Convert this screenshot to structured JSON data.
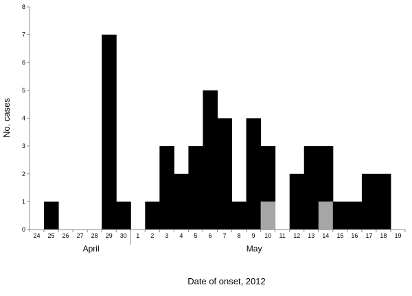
{
  "chart_data": {
    "type": "bar",
    "title": "",
    "xlabel": "Date of onset, 2012",
    "ylabel": "No. cases",
    "ylim": [
      0,
      8
    ],
    "yticks": [
      0,
      1,
      2,
      3,
      4,
      5,
      6,
      7,
      8
    ],
    "grid": false,
    "categories": [
      "24",
      "25",
      "26",
      "27",
      "28",
      "29",
      "30",
      "1",
      "2",
      "3",
      "4",
      "5",
      "6",
      "7",
      "8",
      "9",
      "10",
      "11",
      "12",
      "13",
      "14",
      "15",
      "16",
      "17",
      "18",
      "19"
    ],
    "month_groups": [
      {
        "label": "April",
        "start_index": 0,
        "end_index": 6
      },
      {
        "label": "May",
        "start_index": 7,
        "end_index": 25
      }
    ],
    "series": [
      {
        "color": "#000000",
        "values": [
          0,
          1,
          0,
          0,
          0,
          7,
          1,
          0,
          1,
          3,
          2,
          3,
          5,
          4,
          1,
          4,
          2,
          0,
          2,
          3,
          2,
          1,
          1,
          2,
          2,
          0
        ]
      },
      {
        "color": "#a6a6a6",
        "values": [
          0,
          0,
          0,
          0,
          0,
          0,
          0,
          0,
          0,
          0,
          0,
          0,
          0,
          0,
          0,
          0,
          1,
          0,
          0,
          0,
          1,
          0,
          0,
          0,
          0,
          0
        ]
      }
    ],
    "bar_slots": [
      [
        1
      ],
      [
        5
      ],
      [
        5
      ],
      [
        6
      ],
      [
        8
      ],
      [
        9
      ],
      [
        9
      ],
      [
        10
      ],
      [
        10
      ],
      [
        11
      ],
      [
        11
      ],
      [
        12
      ],
      [
        12
      ],
      [
        13
      ],
      [
        13
      ],
      [
        14
      ],
      [
        15
      ],
      [
        16
      ],
      [
        16
      ],
      [
        18
      ],
      [
        18
      ],
      [
        19
      ],
      [
        19
      ],
      [
        20
      ],
      [
        20
      ],
      [
        21
      ],
      [
        22
      ],
      [
        23
      ],
      [
        23
      ],
      [
        24
      ]
    ]
  }
}
